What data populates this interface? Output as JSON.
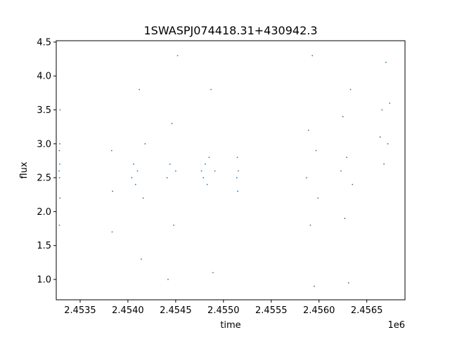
{
  "chart_data": {
    "type": "scatter",
    "title": "1SWASPJ074418.31+430942.3",
    "xlabel": "time",
    "ylabel": "flux",
    "x_offset_label": "1e6",
    "xlim": [
      2453250,
      2456900
    ],
    "ylim": [
      0.7,
      4.52
    ],
    "x_ticks": [
      2453500,
      2454000,
      2454500,
      2455000,
      2455500,
      2456000,
      2456500
    ],
    "x_tick_labels": [
      "2.4535",
      "2.4540",
      "2.4545",
      "2.4550",
      "2.4555",
      "2.4560",
      "2.4565"
    ],
    "y_ticks": [
      1.0,
      1.5,
      2.0,
      2.5,
      3.0,
      3.5,
      4.0,
      4.5
    ],
    "y_tick_labels": [
      "1.0",
      "1.5",
      "2.0",
      "2.5",
      "3.0",
      "3.5",
      "4.0",
      "4.5"
    ],
    "grid": false,
    "marker_color": "#1f77b4",
    "series": [
      {
        "x": [
          2453280,
          2453282,
          2453284,
          2453286,
          2453288,
          2453290,
          2453283,
          2453287,
          2453830,
          2453835,
          2453840,
          2454040,
          2454060,
          2454080,
          2454100,
          2454120,
          2454140,
          2454160,
          2454180,
          2454410,
          2454420,
          2454440,
          2454460,
          2454480,
          2454500,
          2454520,
          2454770,
          2454790,
          2454810,
          2454830,
          2454850,
          2454870,
          2454890,
          2454910,
          2455140,
          2455145,
          2455150,
          2455155,
          2455870,
          2455890,
          2455910,
          2455930,
          2455950,
          2455970,
          2455990,
          2456230,
          2456250,
          2456270,
          2456290,
          2456310,
          2456330,
          2456350,
          2456640,
          2456660,
          2456680,
          2456700,
          2456720,
          2456740
        ],
        "y": [
          2.6,
          2.9,
          2.5,
          2.7,
          2.2,
          3.5,
          1.8,
          3.0,
          2.9,
          1.7,
          2.3,
          2.5,
          2.7,
          2.4,
          2.6,
          3.8,
          1.3,
          2.2,
          3.0,
          2.5,
          1.0,
          2.7,
          3.3,
          1.8,
          2.6,
          4.3,
          2.6,
          2.5,
          2.7,
          2.4,
          2.8,
          3.8,
          1.1,
          2.6,
          2.5,
          2.8,
          2.3,
          2.6,
          2.5,
          3.2,
          1.8,
          4.3,
          0.9,
          2.9,
          2.2,
          2.6,
          3.4,
          1.9,
          2.8,
          0.95,
          3.8,
          2.4,
          3.1,
          3.5,
          2.7,
          4.2,
          3.0,
          3.6
        ]
      }
    ]
  }
}
